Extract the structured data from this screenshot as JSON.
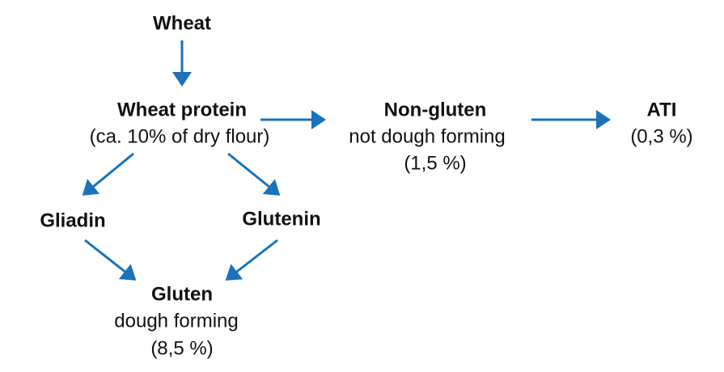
{
  "nodes": [
    {
      "title": "Wheat",
      "lines": []
    },
    {
      "title": "Wheat protein",
      "lines": [
        "(ca. 10% of dry flour)"
      ]
    },
    {
      "title": "Non-gluten",
      "lines": [
        "not dough forming",
        "(1,5 %)"
      ]
    },
    {
      "title": "ATI",
      "lines": [
        "(0,3 %)"
      ]
    },
    {
      "title": "Gliadin",
      "lines": []
    },
    {
      "title": "Glutenin",
      "lines": []
    },
    {
      "title": "Gluten",
      "lines": [
        "dough forming",
        "(8,5 %)"
      ]
    }
  ]
}
